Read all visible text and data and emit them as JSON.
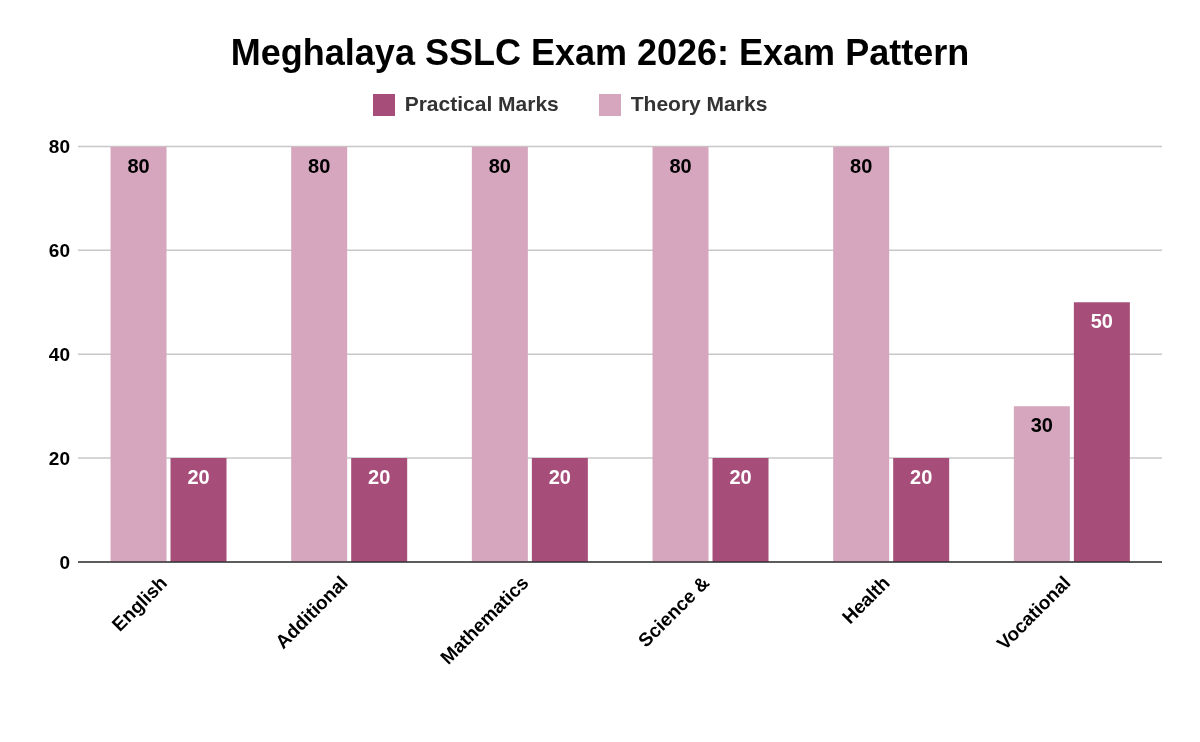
{
  "chart_data": {
    "type": "bar",
    "title": "Meghalaya SSLC Exam 2026: Exam Pattern",
    "categories": [
      "English",
      "Additional",
      "Mathematics",
      "Science &",
      "Health",
      "Vocational"
    ],
    "series": [
      {
        "name": "Theory Marks",
        "color": "#d5a6bd",
        "values": [
          80,
          80,
          80,
          80,
          80,
          30
        ]
      },
      {
        "name": "Practical Marks",
        "color": "#a64d79",
        "values": [
          20,
          20,
          20,
          20,
          20,
          50
        ]
      }
    ],
    "ylim": [
      0,
      80
    ],
    "yticks": [
      0,
      20,
      40,
      60,
      80
    ],
    "grid": "y",
    "legend": "top",
    "data_labels": true
  }
}
